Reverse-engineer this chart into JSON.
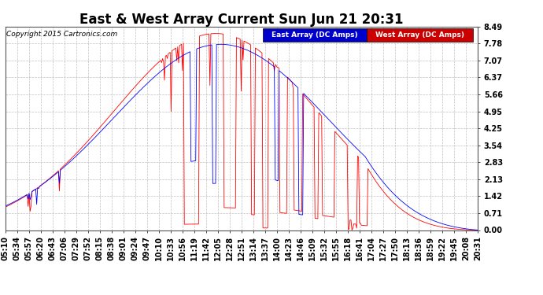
{
  "title": "East & West Array Current Sun Jun 21 20:31",
  "copyright": "Copyright 2015 Cartronics.com",
  "legend_east": "East Array (DC Amps)",
  "legend_west": "West Array (DC Amps)",
  "east_color": "#0000ff",
  "west_color": "#ff0000",
  "legend_east_bg": "#0000cc",
  "legend_west_bg": "#cc0000",
  "ylim": [
    0.0,
    8.49
  ],
  "yticks": [
    0.0,
    0.71,
    1.42,
    2.13,
    2.83,
    3.54,
    4.25,
    4.95,
    5.66,
    6.37,
    7.07,
    7.78,
    8.49
  ],
  "background_color": "#ffffff",
  "grid_color": "#b0b0b0",
  "title_fontsize": 12,
  "tick_fontsize": 7,
  "num_points": 500,
  "time_labels": [
    "05:10",
    "05:34",
    "05:57",
    "06:20",
    "06:43",
    "07:06",
    "07:29",
    "07:52",
    "08:15",
    "08:38",
    "09:01",
    "09:24",
    "09:47",
    "10:10",
    "10:33",
    "10:56",
    "11:19",
    "11:42",
    "12:05",
    "12:28",
    "12:51",
    "13:14",
    "13:37",
    "14:00",
    "14:23",
    "14:46",
    "15:09",
    "15:32",
    "15:55",
    "16:18",
    "16:41",
    "17:04",
    "17:27",
    "17:50",
    "18:13",
    "18:36",
    "18:59",
    "19:22",
    "19:45",
    "20:08",
    "20:31"
  ]
}
